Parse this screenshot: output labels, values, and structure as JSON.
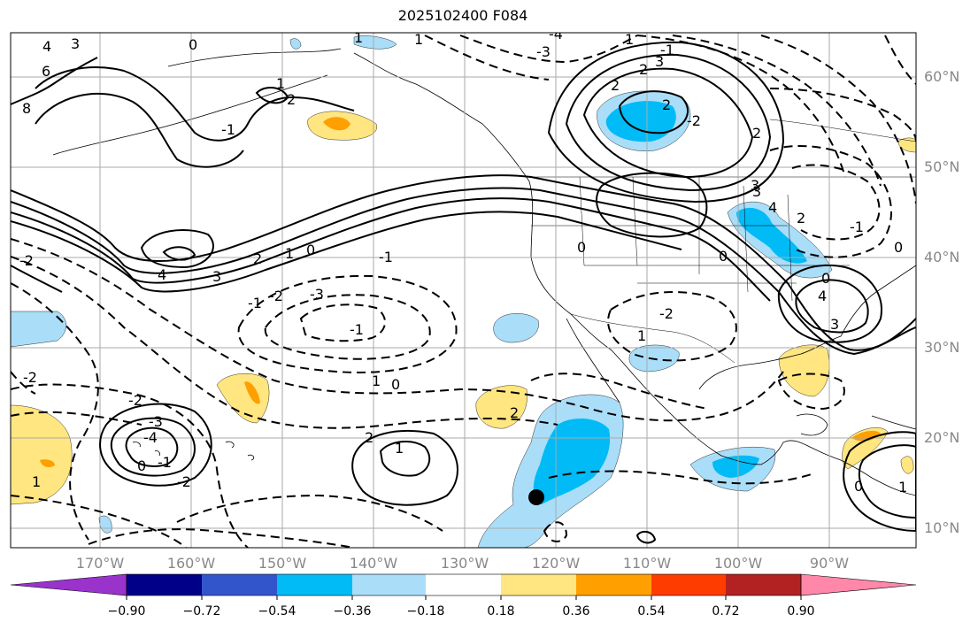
{
  "title": "2025102400 F084",
  "map": {
    "projection": "plate-carree",
    "lon_range": [
      -178,
      -79
    ],
    "lat_range": [
      8,
      65
    ],
    "gridlines": true,
    "coastlines": true,
    "state_borders": true,
    "lat_labels": [
      "60°N",
      "50°N",
      "40°N",
      "30°N",
      "20°N",
      "10°N"
    ],
    "lon_labels": [
      "170°W",
      "160°W",
      "150°W",
      "140°W",
      "130°W",
      "120°W",
      "110°W",
      "100°W",
      "90°W"
    ],
    "contour_labels": [
      "4",
      "3",
      "6",
      "8",
      "0",
      "1",
      "2",
      "-1",
      "-2",
      "-3",
      "-4",
      "1",
      "3",
      "2",
      "1",
      "1",
      "2",
      "1",
      "0",
      "-1",
      "-2",
      "-3",
      "4",
      "3",
      "0",
      "-1",
      "-2",
      "-2",
      "2",
      "3",
      "4",
      "4",
      "3",
      "2",
      "1",
      "0",
      "-1",
      "-2",
      "-3",
      "-4",
      "-1",
      "0",
      "-2",
      "2",
      "1",
      "2",
      "1",
      "0",
      "0",
      "1",
      "0",
      "-1",
      "-2",
      "3",
      "2",
      "1",
      "0",
      "-1",
      "2"
    ],
    "marker": {
      "type": "filled-circle",
      "lon": -122,
      "lat": 13.5,
      "color": "#000000"
    }
  },
  "colorbar": {
    "ticks": [
      "−0.90",
      "−0.72",
      "−0.54",
      "−0.36",
      "−0.18",
      "0.18",
      "0.36",
      "0.54",
      "0.72",
      "0.90"
    ],
    "colors": [
      "#9933cc",
      "#000088",
      "#3355cc",
      "#00bbf5",
      "#aaddf8",
      "#ffffff",
      "#ffe680",
      "#ff9f00",
      "#ff3c00",
      "#b22222",
      "#ff88aa"
    ],
    "extend": "both"
  },
  "palette": {
    "light_blue": "#aaddf8",
    "blue": "#00bbf5",
    "yellow": "#ffe680",
    "orange": "#ff9f00",
    "contour": "#000000",
    "grid": "#aaaaaa",
    "tick_text": "#888888"
  }
}
